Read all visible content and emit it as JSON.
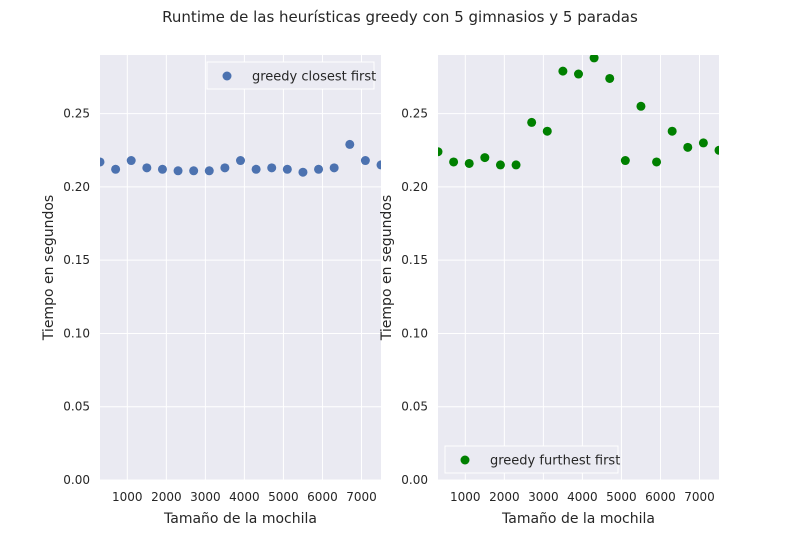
{
  "figure": {
    "title": "Runtime de las heurísticas greedy con 5 gimnasios y 5 paradas"
  },
  "chart_data": [
    {
      "type": "scatter",
      "xlabel": "Tamaño de la mochila",
      "ylabel": "Tiempo en segundos",
      "xlim": [
        300,
        7500
      ],
      "ylim": [
        0,
        0.29
      ],
      "xticks": [
        1000,
        2000,
        3000,
        4000,
        5000,
        6000,
        7000
      ],
      "yticks": [
        0.0,
        0.05,
        0.1,
        0.15,
        0.2,
        0.25
      ],
      "xtick_labels": [
        "1000",
        "2000",
        "3000",
        "4000",
        "5000",
        "6000",
        "7000"
      ],
      "ytick_labels": [
        "0.00",
        "0.05",
        "0.10",
        "0.15",
        "0.20",
        "0.25"
      ],
      "grid": true,
      "legend_position": "upper right",
      "series": [
        {
          "name": "greedy closest first",
          "color": "#4c72b0",
          "x": [
            300,
            700,
            1100,
            1500,
            1900,
            2300,
            2700,
            3100,
            3500,
            3900,
            4300,
            4700,
            5100,
            5500,
            5900,
            6300,
            6700,
            7100,
            7500
          ],
          "y": [
            0.217,
            0.212,
            0.218,
            0.213,
            0.212,
            0.211,
            0.211,
            0.211,
            0.213,
            0.218,
            0.212,
            0.213,
            0.212,
            0.21,
            0.212,
            0.213,
            0.229,
            0.218,
            0.215
          ]
        }
      ]
    },
    {
      "type": "scatter",
      "xlabel": "Tamaño de la mochila",
      "ylabel": "Tiempo en segundos",
      "xlim": [
        300,
        7500
      ],
      "ylim": [
        0,
        0.29
      ],
      "xticks": [
        1000,
        2000,
        3000,
        4000,
        5000,
        6000,
        7000
      ],
      "yticks": [
        0.0,
        0.05,
        0.1,
        0.15,
        0.2,
        0.25
      ],
      "xtick_labels": [
        "1000",
        "2000",
        "3000",
        "4000",
        "5000",
        "6000",
        "7000"
      ],
      "ytick_labels": [
        "0.00",
        "0.05",
        "0.10",
        "0.15",
        "0.20",
        "0.25"
      ],
      "grid": true,
      "legend_position": "lower left",
      "series": [
        {
          "name": "greedy furthest first",
          "color": "#008000",
          "x": [
            300,
            700,
            1100,
            1500,
            1900,
            2300,
            2700,
            3100,
            3500,
            3900,
            4300,
            4700,
            5100,
            5500,
            5900,
            6300,
            6700,
            7100,
            7500
          ],
          "y": [
            0.224,
            0.217,
            0.216,
            0.22,
            0.215,
            0.215,
            0.244,
            0.238,
            0.279,
            0.277,
            0.288,
            0.274,
            0.218,
            0.255,
            0.217,
            0.238,
            0.227,
            0.23,
            0.225
          ]
        }
      ]
    }
  ]
}
